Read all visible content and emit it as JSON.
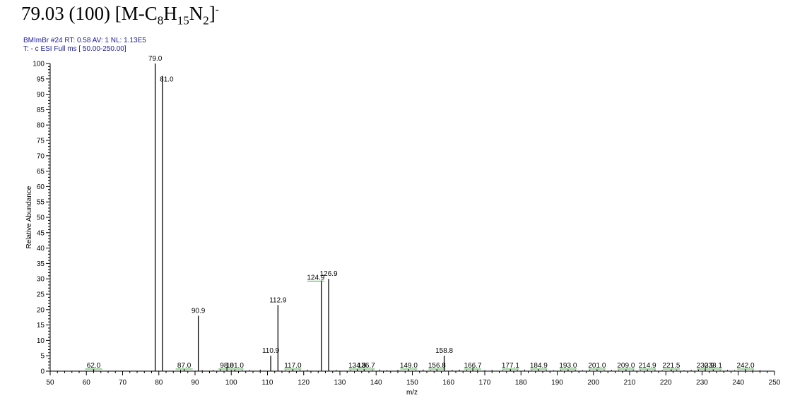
{
  "title": {
    "prefix": "79.03 (100) [M-C",
    "sub1": "8",
    "mid1": "H",
    "sub2": "15",
    "mid2": "N",
    "sub3": "2",
    "end": "]",
    "sup": "-"
  },
  "scan_info": {
    "line1": "BMImBr #24   RT: 0.58   AV: 1   NL: 1.13E5",
    "line2": "T: - c ESI Full ms [ 50.00-250.00]"
  },
  "chart_data": {
    "type": "bar",
    "title": "79.03 (100) [M-C8H15N2]-",
    "xlabel": "m/z",
    "ylabel": "Relative Abundance",
    "xlim": [
      50,
      250
    ],
    "ylim": [
      0,
      100
    ],
    "x_major_ticks": [
      50,
      60,
      70,
      80,
      90,
      100,
      110,
      120,
      130,
      140,
      150,
      160,
      170,
      180,
      190,
      200,
      210,
      220,
      230,
      240,
      250
    ],
    "y_major_ticks": [
      0,
      5,
      10,
      15,
      20,
      25,
      30,
      35,
      40,
      45,
      50,
      55,
      60,
      65,
      70,
      75,
      80,
      85,
      90,
      95,
      100
    ],
    "grid": false,
    "peaks": [
      {
        "mz": 62.0,
        "intensity": 0.6,
        "label": "62.0"
      },
      {
        "mz": 79.0,
        "intensity": 100,
        "label": "79.0"
      },
      {
        "mz": 81.0,
        "intensity": 96,
        "label": "81.0"
      },
      {
        "mz": 87.0,
        "intensity": 0.8,
        "label": "87.0"
      },
      {
        "mz": 90.9,
        "intensity": 18,
        "label": "90.9"
      },
      {
        "mz": 98.8,
        "intensity": 1.2,
        "label": "98.8"
      },
      {
        "mz": 101.0,
        "intensity": 0.5,
        "label": "101.0"
      },
      {
        "mz": 110.9,
        "intensity": 5,
        "label": "110.9"
      },
      {
        "mz": 112.9,
        "intensity": 21.5,
        "label": "112.9"
      },
      {
        "mz": 117.0,
        "intensity": 0.6,
        "label": "117.0"
      },
      {
        "mz": 124.9,
        "intensity": 29.5,
        "label": "124.9"
      },
      {
        "mz": 126.9,
        "intensity": 30,
        "label": "126.9"
      },
      {
        "mz": 134.8,
        "intensity": 0.8,
        "label": "134.8"
      },
      {
        "mz": 136.7,
        "intensity": 0.6,
        "label": "136.7"
      },
      {
        "mz": 149.0,
        "intensity": 0.6,
        "label": "149.0"
      },
      {
        "mz": 156.8,
        "intensity": 0.7,
        "label": "156.8"
      },
      {
        "mz": 158.8,
        "intensity": 5,
        "label": "158.8"
      },
      {
        "mz": 166.7,
        "intensity": 1.2,
        "label": "166.7"
      },
      {
        "mz": 177.1,
        "intensity": 0.8,
        "label": "177.1"
      },
      {
        "mz": 184.9,
        "intensity": 0.7,
        "label": "184.9"
      },
      {
        "mz": 193.0,
        "intensity": 0.5,
        "label": "193.0"
      },
      {
        "mz": 201.0,
        "intensity": 0.5,
        "label": "201.0"
      },
      {
        "mz": 209.0,
        "intensity": 0.5,
        "label": "209.0"
      },
      {
        "mz": 214.9,
        "intensity": 0.5,
        "label": "214.9"
      },
      {
        "mz": 221.5,
        "intensity": 0.5,
        "label": "221.5"
      },
      {
        "mz": 230.9,
        "intensity": 1.0,
        "label": "230.9"
      },
      {
        "mz": 233.1,
        "intensity": 0.5,
        "label": "233.1"
      },
      {
        "mz": 242.0,
        "intensity": 0.6,
        "label": "242.0"
      }
    ],
    "minor_peaks": [
      {
        "mz": 86.0,
        "intensity": 0.4
      },
      {
        "mz": 92.0,
        "intensity": 0.3
      },
      {
        "mz": 95.0,
        "intensity": 0.4
      },
      {
        "mz": 97.0,
        "intensity": 0.6
      },
      {
        "mz": 100.0,
        "intensity": 0.4
      },
      {
        "mz": 103.0,
        "intensity": 0.3
      },
      {
        "mz": 105.0,
        "intensity": 0.4
      },
      {
        "mz": 108.0,
        "intensity": 0.5
      },
      {
        "mz": 115.0,
        "intensity": 0.3
      },
      {
        "mz": 119.0,
        "intensity": 0.4
      },
      {
        "mz": 121.0,
        "intensity": 0.5
      },
      {
        "mz": 129.0,
        "intensity": 0.4
      },
      {
        "mz": 133.0,
        "intensity": 0.3
      },
      {
        "mz": 139.0,
        "intensity": 0.4
      },
      {
        "mz": 141.0,
        "intensity": 0.5
      },
      {
        "mz": 143.0,
        "intensity": 0.3
      },
      {
        "mz": 146.0,
        "intensity": 0.4
      },
      {
        "mz": 151.0,
        "intensity": 0.3
      },
      {
        "mz": 153.0,
        "intensity": 0.5
      },
      {
        "mz": 155.0,
        "intensity": 0.3
      },
      {
        "mz": 161.0,
        "intensity": 0.4
      },
      {
        "mz": 163.0,
        "intensity": 0.5
      },
      {
        "mz": 165.0,
        "intensity": 0.4
      },
      {
        "mz": 168.0,
        "intensity": 0.4
      },
      {
        "mz": 170.0,
        "intensity": 0.3
      },
      {
        "mz": 172.0,
        "intensity": 0.4
      },
      {
        "mz": 175.0,
        "intensity": 0.3
      },
      {
        "mz": 179.0,
        "intensity": 0.4
      },
      {
        "mz": 181.0,
        "intensity": 0.5
      },
      {
        "mz": 183.0,
        "intensity": 0.3
      },
      {
        "mz": 187.0,
        "intensity": 0.4
      },
      {
        "mz": 189.0,
        "intensity": 0.3
      },
      {
        "mz": 191.0,
        "intensity": 0.4
      },
      {
        "mz": 195.0,
        "intensity": 0.4
      },
      {
        "mz": 197.0,
        "intensity": 0.3
      },
      {
        "mz": 199.0,
        "intensity": 0.4
      },
      {
        "mz": 203.0,
        "intensity": 0.3
      },
      {
        "mz": 205.0,
        "intensity": 0.4
      },
      {
        "mz": 207.0,
        "intensity": 0.3
      },
      {
        "mz": 211.0,
        "intensity": 0.4
      },
      {
        "mz": 213.0,
        "intensity": 0.3
      },
      {
        "mz": 217.0,
        "intensity": 0.4
      },
      {
        "mz": 219.0,
        "intensity": 0.3
      },
      {
        "mz": 223.0,
        "intensity": 0.4
      },
      {
        "mz": 225.0,
        "intensity": 0.3
      },
      {
        "mz": 227.0,
        "intensity": 0.4
      },
      {
        "mz": 229.0,
        "intensity": 0.5
      },
      {
        "mz": 235.0,
        "intensity": 0.3
      },
      {
        "mz": 237.0,
        "intensity": 0.4
      },
      {
        "mz": 239.0,
        "intensity": 0.3
      },
      {
        "mz": 244.0,
        "intensity": 0.4
      },
      {
        "mz": 246.0,
        "intensity": 0.3
      }
    ],
    "colors": {
      "axis": "#000000",
      "peak": "#000000",
      "label": "#000000",
      "scan_info": "#1a1a9a",
      "label_underline": "#40b040"
    }
  }
}
